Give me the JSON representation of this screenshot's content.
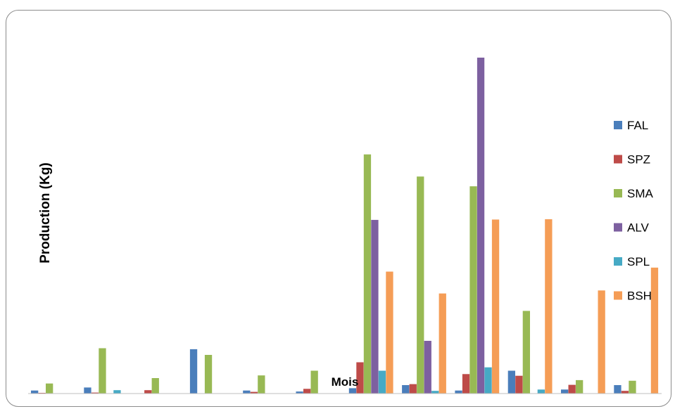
{
  "chart_data": {
    "type": "bar",
    "title": "",
    "xlabel": "Mois",
    "ylabel": "Production (Kg)",
    "categories": [
      "",
      "",
      "",
      "",
      "",
      "",
      "",
      "",
      "",
      "",
      "",
      ""
    ],
    "ylim": [
      0,
      1000
    ],
    "grid": false,
    "legend_position": "right",
    "series": [
      {
        "name": "FAL",
        "color": "#4a7ebb",
        "values": [
          9,
          18,
          0,
          132,
          9,
          6,
          16,
          25,
          9,
          68,
          12,
          25
        ]
      },
      {
        "name": "SPZ",
        "color": "#be4b48",
        "values": [
          2,
          3,
          10,
          0,
          5,
          14,
          93,
          28,
          58,
          53,
          26,
          8
        ]
      },
      {
        "name": "SMA",
        "color": "#98b954",
        "values": [
          30,
          135,
          46,
          115,
          54,
          68,
          712,
          646,
          617,
          246,
          40,
          38
        ]
      },
      {
        "name": "ALV",
        "color": "#7d60a0",
        "values": [
          0,
          0,
          0,
          0,
          0,
          0,
          517,
          157,
          1000,
          0,
          0,
          0
        ]
      },
      {
        "name": "SPL",
        "color": "#46aac5",
        "values": [
          0,
          10,
          0,
          0,
          0,
          0,
          68,
          8,
          78,
          12,
          0,
          0
        ]
      },
      {
        "name": "BSH",
        "color": "#f59d56",
        "values": [
          0,
          0,
          0,
          0,
          0,
          0,
          363,
          298,
          518,
          519,
          307,
          375
        ]
      }
    ]
  }
}
